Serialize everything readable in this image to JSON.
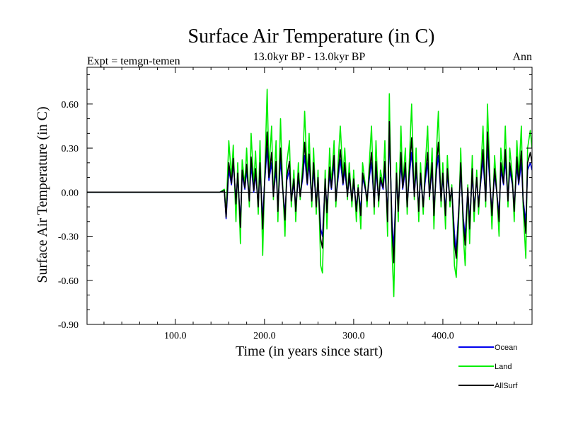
{
  "chart_data": {
    "type": "line",
    "title": "Surface Air Temperature (in C)",
    "subtitle": "13.0kyr BP - 13.0kyr BP",
    "left_note": "Expt = temgn-temen",
    "right_note": "Ann",
    "xlabel": "Time (in years since start)",
    "ylabel": "Surface Air Temperature (in C)",
    "xlim": [
      1,
      500
    ],
    "ylim": [
      -0.9,
      0.85
    ],
    "xticks": [
      100,
      200,
      300,
      400
    ],
    "xtick_labels": [
      "100.0",
      "200.0",
      "300.0",
      "400.0"
    ],
    "yticks": [
      -0.9,
      -0.6,
      -0.3,
      0.0,
      0.3,
      0.6
    ],
    "ytick_labels": [
      "-0.90",
      "-0.60",
      "-0.30",
      "0.00",
      "0.30",
      "0.60"
    ],
    "zero_line": true,
    "legend_placement": "bottom-right",
    "x": [
      1,
      150,
      155,
      157,
      160,
      163,
      165,
      168,
      170,
      173,
      175,
      178,
      180,
      183,
      185,
      188,
      190,
      193,
      195,
      198,
      200,
      203,
      205,
      208,
      210,
      213,
      215,
      218,
      220,
      223,
      225,
      228,
      230,
      233,
      235,
      238,
      240,
      243,
      245,
      248,
      250,
      253,
      255,
      258,
      260,
      263,
      265,
      268,
      270,
      273,
      275,
      278,
      280,
      283,
      285,
      288,
      290,
      293,
      295,
      298,
      300,
      303,
      305,
      308,
      310,
      313,
      315,
      318,
      320,
      323,
      325,
      328,
      330,
      333,
      335,
      338,
      340,
      343,
      345,
      348,
      350,
      353,
      355,
      358,
      360,
      363,
      365,
      368,
      370,
      373,
      375,
      378,
      380,
      383,
      385,
      388,
      390,
      393,
      395,
      398,
      400,
      403,
      405,
      408,
      410,
      413,
      415,
      418,
      420,
      423,
      425,
      428,
      430,
      433,
      435,
      438,
      440,
      443,
      445,
      448,
      450,
      453,
      455,
      458,
      460,
      463,
      465,
      468,
      470,
      473,
      475,
      478,
      480,
      483,
      485,
      488,
      490,
      493,
      495,
      498,
      500
    ],
    "series": [
      {
        "name": "Land",
        "color": "#00ee00",
        "values": [
          0,
          0,
          0.02,
          -0.15,
          0.35,
          0.1,
          0.32,
          -0.2,
          0.2,
          -0.35,
          0.22,
          0.05,
          0.3,
          -0.1,
          0.4,
          0.05,
          0.28,
          -0.15,
          0.35,
          -0.43,
          0.05,
          0.7,
          0.15,
          0.45,
          -0.05,
          0.35,
          -0.2,
          0.5,
          0.1,
          -0.3,
          0.2,
          0.35,
          -0.1,
          0.15,
          -0.2,
          0.2,
          -0.05,
          0.2,
          0.55,
          0.1,
          0.4,
          -0.1,
          0.3,
          -0.15,
          0.15,
          -0.5,
          -0.55,
          0.15,
          -0.25,
          0.3,
          0.05,
          0.35,
          -0.1,
          0.25,
          0.45,
          0.1,
          0.3,
          -0.05,
          0.2,
          -0.1,
          0.15,
          -0.2,
          0.05,
          -0.25,
          0.2,
          0.05,
          -0.1,
          0.25,
          0.45,
          -0.15,
          0.35,
          -0.1,
          0.15,
          0.05,
          0.35,
          -0.3,
          0.67,
          -0.4,
          -0.71,
          0.2,
          -0.2,
          0.45,
          0.05,
          0.3,
          -0.15,
          0.3,
          0.6,
          -0.05,
          0.3,
          -0.2,
          0.2,
          -0.15,
          0.15,
          0.45,
          -0.05,
          0.3,
          -0.25,
          0.3,
          0.55,
          -0.1,
          0.2,
          -0.25,
          0.25,
          -0.1,
          0.05,
          -0.5,
          -0.58,
          -0.15,
          0.3,
          -0.3,
          -0.5,
          0.05,
          -0.35,
          0.25,
          -0.2,
          0.15,
          -0.15,
          0.2,
          0.45,
          -0.1,
          0.6,
          0.05,
          -0.25,
          0.25,
          0.05,
          -0.3,
          0.3,
          0.1,
          0.45,
          -0.1,
          0.3,
          0.1,
          -0.2,
          0.35,
          0.1,
          0.45,
          -0.1,
          -0.45,
          0.3,
          0.42,
          0.3
        ]
      },
      {
        "name": "Ocean",
        "color": "#0000ee",
        "values": [
          0,
          0,
          0.01,
          -0.18,
          0.15,
          0.05,
          0.2,
          -0.05,
          0.1,
          -0.2,
          0.12,
          0.02,
          0.15,
          -0.05,
          0.18,
          0.0,
          0.12,
          -0.08,
          0.15,
          -0.18,
          0.05,
          0.3,
          0.08,
          0.2,
          -0.02,
          0.15,
          -0.1,
          0.22,
          0.05,
          -0.15,
          0.08,
          0.15,
          -0.05,
          0.06,
          -0.1,
          0.1,
          -0.02,
          0.1,
          0.25,
          0.05,
          0.2,
          -0.05,
          0.15,
          -0.08,
          0.08,
          -0.25,
          -0.3,
          0.06,
          -0.1,
          0.12,
          0.02,
          0.2,
          -0.05,
          0.12,
          0.22,
          0.05,
          0.15,
          -0.02,
          0.1,
          -0.05,
          0.06,
          -0.1,
          0.02,
          -0.12,
          0.1,
          0.02,
          -0.05,
          0.12,
          0.2,
          -0.08,
          0.15,
          -0.05,
          0.08,
          0.02,
          0.15,
          -0.15,
          0.4,
          -0.2,
          -0.38,
          0.1,
          -0.1,
          0.2,
          0.02,
          0.15,
          -0.08,
          0.15,
          0.27,
          -0.02,
          0.15,
          -0.1,
          0.1,
          -0.08,
          0.06,
          0.2,
          -0.02,
          0.15,
          -0.12,
          0.15,
          0.25,
          -0.05,
          0.1,
          -0.12,
          0.12,
          -0.05,
          0.02,
          -0.28,
          -0.4,
          -0.1,
          0.15,
          -0.18,
          -0.3,
          0.02,
          -0.2,
          0.12,
          -0.1,
          0.08,
          -0.08,
          0.1,
          0.22,
          -0.05,
          0.32,
          0.02,
          -0.12,
          0.12,
          0.02,
          -0.15,
          0.15,
          0.05,
          0.22,
          -0.05,
          0.15,
          0.05,
          -0.1,
          0.18,
          0.05,
          0.2,
          -0.05,
          -0.2,
          0.15,
          0.2,
          0.15
        ]
      },
      {
        "name": "AllSurf",
        "color": "#000000",
        "values": [
          0,
          0,
          0.01,
          -0.17,
          0.2,
          0.06,
          0.23,
          -0.08,
          0.13,
          -0.24,
          0.15,
          0.03,
          0.19,
          -0.06,
          0.24,
          0.01,
          0.16,
          -0.1,
          0.2,
          -0.25,
          0.05,
          0.41,
          0.1,
          0.27,
          -0.03,
          0.21,
          -0.13,
          0.3,
          0.06,
          -0.19,
          0.11,
          0.21,
          -0.06,
          0.09,
          -0.13,
          0.13,
          -0.03,
          0.13,
          0.34,
          0.06,
          0.26,
          -0.06,
          0.2,
          -0.1,
          0.1,
          -0.32,
          -0.38,
          0.09,
          -0.14,
          0.17,
          0.03,
          0.25,
          -0.06,
          0.16,
          0.29,
          0.06,
          0.2,
          -0.03,
          0.13,
          -0.06,
          0.09,
          -0.13,
          0.03,
          -0.16,
          0.13,
          0.03,
          -0.06,
          0.16,
          0.27,
          -0.1,
          0.21,
          -0.06,
          0.1,
          0.03,
          0.21,
          -0.2,
          0.48,
          -0.26,
          -0.48,
          0.13,
          -0.13,
          0.27,
          0.03,
          0.2,
          -0.1,
          0.2,
          0.37,
          -0.03,
          0.2,
          -0.13,
          0.13,
          -0.1,
          0.09,
          0.27,
          -0.03,
          0.2,
          -0.16,
          0.2,
          0.34,
          -0.06,
          0.13,
          -0.16,
          0.16,
          -0.06,
          0.03,
          -0.35,
          -0.45,
          -0.12,
          0.2,
          -0.22,
          -0.36,
          0.03,
          -0.25,
          0.16,
          -0.13,
          0.1,
          -0.1,
          0.13,
          0.29,
          -0.06,
          0.41,
          0.03,
          -0.16,
          0.16,
          0.03,
          -0.2,
          0.2,
          0.06,
          0.29,
          -0.06,
          0.2,
          0.06,
          -0.13,
          0.24,
          0.06,
          0.28,
          -0.06,
          -0.28,
          0.2,
          0.27,
          0.2
        ]
      }
    ],
    "legend": [
      {
        "label": "Ocean",
        "color": "#0000ee"
      },
      {
        "label": "Land",
        "color": "#00ee00"
      },
      {
        "label": "AllSurf",
        "color": "#000000"
      }
    ]
  }
}
